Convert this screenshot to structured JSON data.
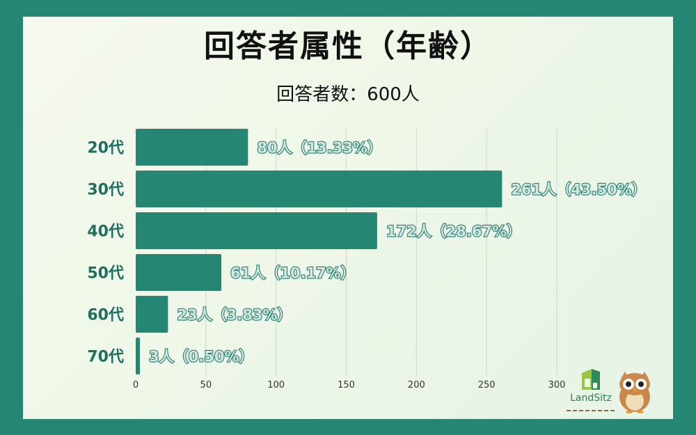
{
  "title": "回答者属性（年齢）",
  "subtitle": "回答者数：600人",
  "logo": {
    "name": "LandSitz"
  },
  "colors": {
    "frame": "#258674",
    "bar": "#258674"
  },
  "chart_data": {
    "type": "bar",
    "orientation": "horizontal",
    "categories": [
      "20代",
      "30代",
      "40代",
      "50代",
      "60代",
      "70代"
    ],
    "values": [
      80,
      261,
      172,
      61,
      23,
      3
    ],
    "data_labels": [
      "80人（13.33%）",
      "261人（43.50%）",
      "172人（28.67%）",
      "61人（10.17%）",
      "23人（3.83%）",
      "3人（0.50%）"
    ],
    "x_ticks": [
      0,
      50,
      100,
      150,
      200,
      250,
      300
    ],
    "xlim": [
      0,
      300
    ],
    "grid": true,
    "legend": "none"
  }
}
